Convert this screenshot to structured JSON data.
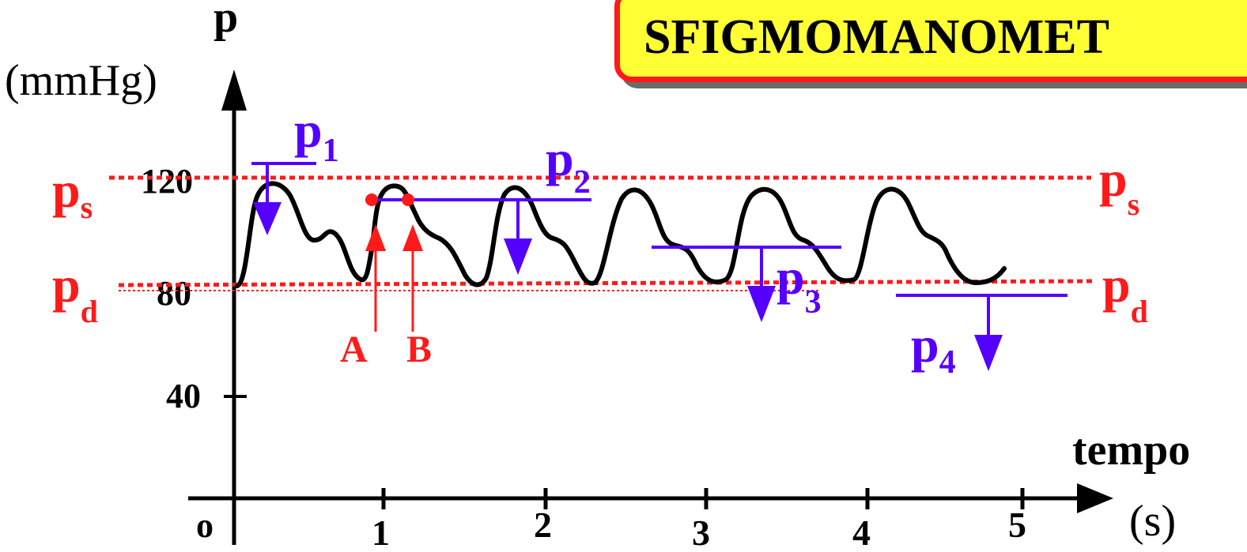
{
  "title": "SFIGMOMANOMET",
  "axes": {
    "y_symbol": "p",
    "y_unit": "(mmHg)",
    "x_label": "tempo",
    "x_unit": "(s)",
    "origin": "o",
    "y_ticks": [
      "40",
      "80",
      "120"
    ],
    "x_ticks": [
      "1",
      "2",
      "3",
      "4",
      "5"
    ]
  },
  "levels": {
    "systolic": {
      "symbol": "p",
      "sub": "s",
      "value": 120
    },
    "diastolic": {
      "symbol": "p",
      "sub": "d",
      "value": 80
    }
  },
  "cuff_pressures": [
    {
      "symbol": "p",
      "sub": "1"
    },
    {
      "symbol": "p",
      "sub": "2"
    },
    {
      "symbol": "p",
      "sub": "3"
    },
    {
      "symbol": "p",
      "sub": "4"
    }
  ],
  "points": [
    {
      "label": "A"
    },
    {
      "label": "B"
    }
  ],
  "colors": {
    "accent_red": "#ff1a1a",
    "cuff_blue": "#5500ff",
    "title_bg": "#ffff33",
    "curve": "#000000"
  }
}
